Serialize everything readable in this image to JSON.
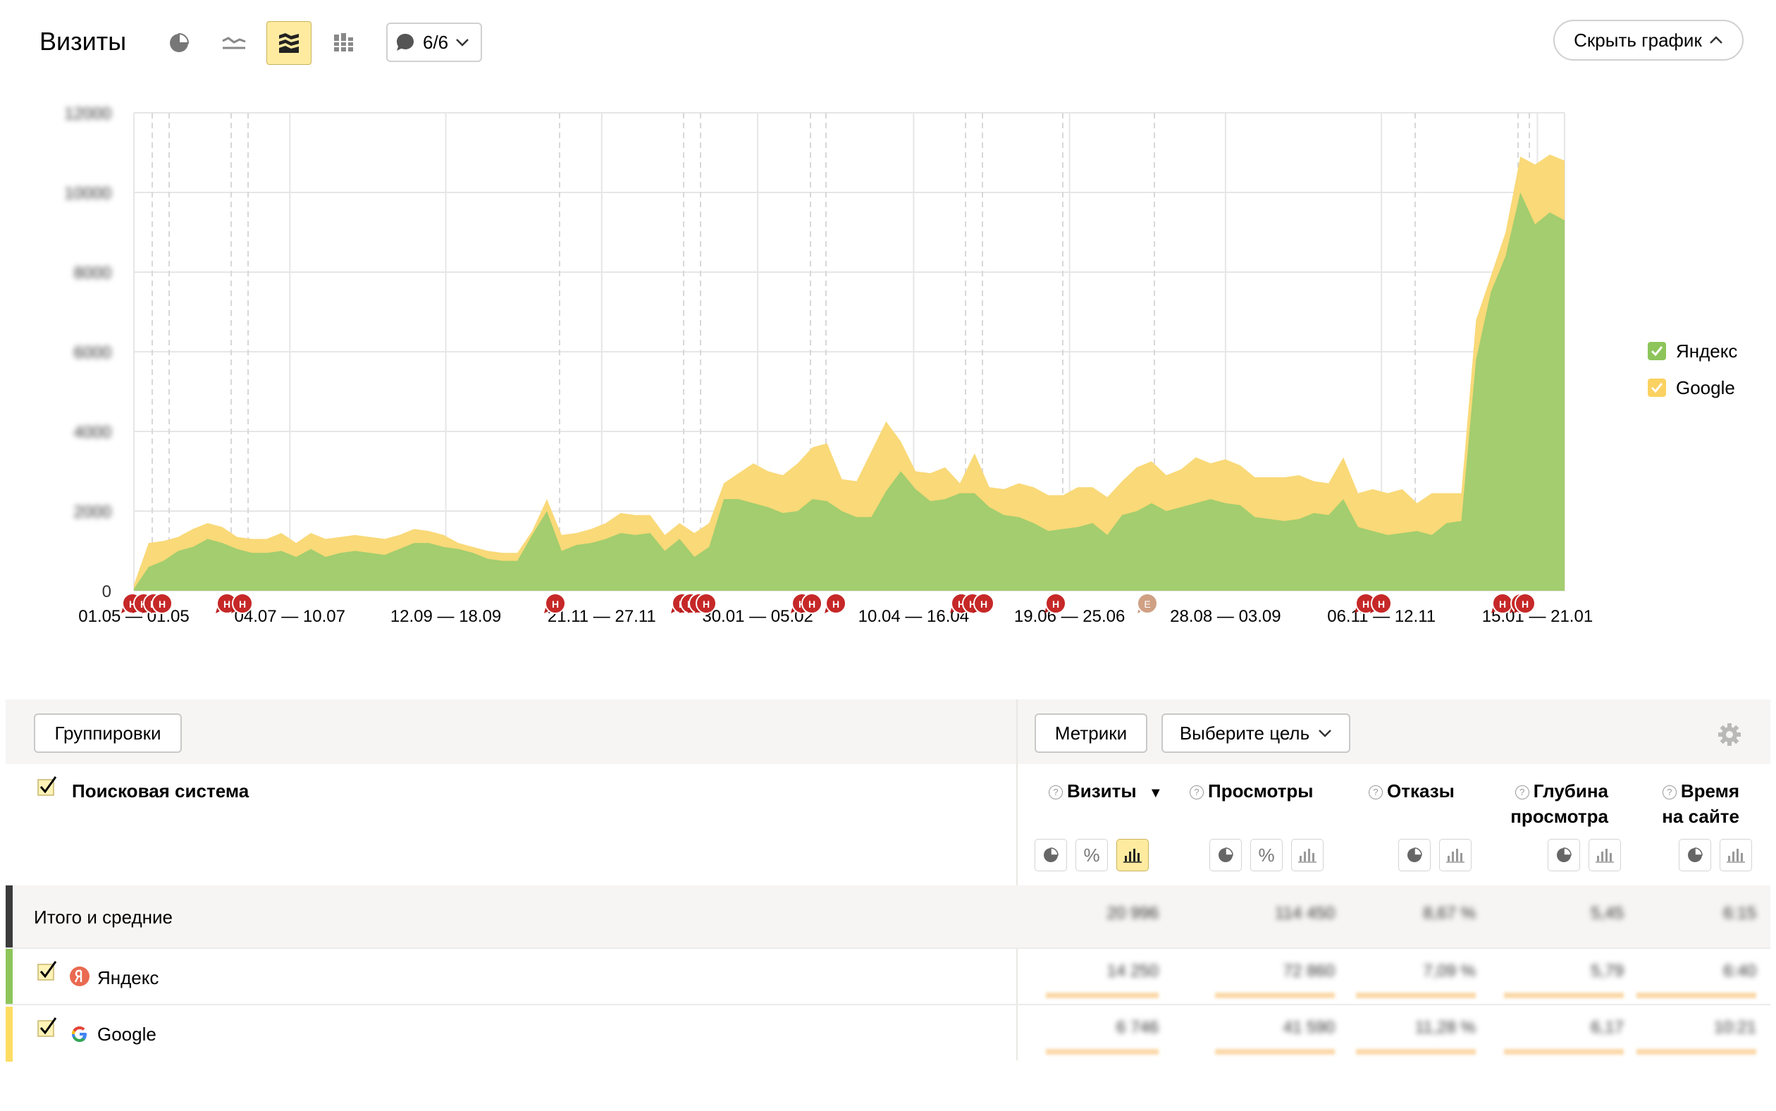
{
  "header": {
    "title": "Визиты",
    "notes_label": "6/6",
    "hide_chart_label": "Скрыть график"
  },
  "toolbar_icons": [
    "pie-chart-icon",
    "line-chart-icon",
    "stacked-area-icon",
    "stacked-bar-icon"
  ],
  "chart_data": {
    "type": "area",
    "stacked": true,
    "y_ticks": [
      "0",
      "2000",
      "4000",
      "6000",
      "8000",
      "10000",
      "12000"
    ],
    "ylim": [
      0,
      12000
    ],
    "x_tick_labels": [
      "01.05 — 01.05",
      "04.07 — 10.07",
      "12.09 — 18.09",
      "21.11 — 27.11",
      "30.01 — 05.02",
      "10.04 — 16.04",
      "19.06 — 25.06",
      "28.08 — 03.09",
      "06.11 — 12.11",
      "15.01 — 21.01"
    ],
    "series": [
      {
        "name": "Яндекс",
        "color": "#a3cd6e",
        "values": [
          50,
          600,
          750,
          1000,
          1100,
          1300,
          1200,
          1050,
          950,
          950,
          1000,
          850,
          1050,
          850,
          950,
          1000,
          950,
          900,
          1050,
          1200,
          1200,
          1100,
          1050,
          950,
          800,
          750,
          750,
          1400,
          2000,
          1000,
          1150,
          1200,
          1300,
          1450,
          1400,
          1450,
          1000,
          1300,
          850,
          1100,
          2300,
          2300,
          2200,
          2100,
          1950,
          2000,
          2300,
          2250,
          2000,
          1850,
          1850,
          2500,
          3000,
          2550,
          2250,
          2300,
          2450,
          2450,
          2100,
          1900,
          1850,
          1700,
          1500,
          1550,
          1600,
          1700,
          1400,
          1900,
          2000,
          2200,
          2000,
          2100,
          2200,
          2300,
          2200,
          2150,
          1850,
          1800,
          1750,
          1800,
          1950,
          1900,
          2300,
          1600,
          1500,
          1400,
          1450,
          1500,
          1400,
          1700,
          1750,
          5800,
          7500,
          8400,
          10000,
          9200,
          9500,
          9300
        ],
        "stacked_top": [
          150,
          1200,
          1250,
          1350,
          1550,
          1700,
          1600,
          1350,
          1300,
          1300,
          1450,
          1200,
          1450,
          1300,
          1350,
          1400,
          1350,
          1300,
          1400,
          1550,
          1500,
          1400,
          1200,
          1100,
          1000,
          950,
          950,
          1500,
          2300,
          1400,
          1450,
          1550,
          1700,
          1950,
          1900,
          1900,
          1400,
          1700,
          1450,
          1700,
          2700,
          2950,
          3200,
          3000,
          2900,
          3200,
          3600,
          3700,
          2800,
          2750,
          3500,
          4250,
          3750,
          3000,
          2950,
          3100,
          2700,
          3450,
          2600,
          2550,
          2700,
          2600,
          2400,
          2400,
          2600,
          2600,
          2350,
          2750,
          3100,
          3250,
          2900,
          3050,
          3350,
          3200,
          3300,
          3150,
          2850,
          2850,
          2850,
          2900,
          2750,
          2700,
          3350,
          2450,
          2550,
          2450,
          2550,
          2200,
          2450,
          2450,
          2450,
          6800,
          7900,
          9000,
          10900,
          10700,
          10950,
          10800
        ]
      },
      {
        "name": "Google",
        "color": "#f9d978"
      }
    ]
  },
  "annotations": {
    "marker_label": "Н",
    "event_label": "Е"
  },
  "table": {
    "groupings_label": "Группировки",
    "metrics_label": "Метрики",
    "goal_label": "Выберите цель",
    "dimension_header": "Поисковая система",
    "columns": [
      {
        "line1": "Визиты",
        "line2": "",
        "sort": "▼"
      },
      {
        "line1": "Просмотры",
        "line2": ""
      },
      {
        "line1": "Отказы",
        "line2": ""
      },
      {
        "line1": "Глубина",
        "line2": "просмотра"
      },
      {
        "line1": "Время",
        "line2": "на сайте"
      }
    ],
    "help_icon": "?",
    "percent_icon": "%",
    "rows": [
      {
        "label": "Итого и средние",
        "values": [
          "20 996",
          "114 450",
          "8,67 %",
          "5,45",
          "6:15"
        ]
      },
      {
        "label": "Яндекс",
        "values": [
          "14 250",
          "72 860",
          "7,09 %",
          "5,79",
          "6:40"
        ]
      },
      {
        "label": "Google",
        "values": [
          "6 746",
          "41 590",
          "11,28 %",
          "6,17",
          "10:21"
        ]
      }
    ]
  }
}
